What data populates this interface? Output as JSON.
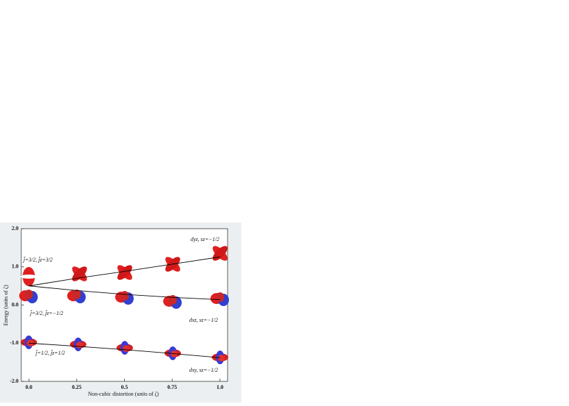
{
  "chart_data": {
    "type": "line",
    "xlabel": "Non-cubic distortion (units of ζ)",
    "ylabel": "Energy (units of ζ)",
    "x": [
      0,
      0.25,
      0.5,
      0.75,
      1
    ],
    "series": [
      {
        "name": "d_yz",
        "color": "#000000",
        "values": [
          0.5,
          0.7,
          0.88,
          1.07,
          1.26
        ]
      },
      {
        "name": "d_xz",
        "color": "#000000",
        "values": [
          0.5,
          0.38,
          0.28,
          0.2,
          0.14
        ]
      },
      {
        "name": "d_xy",
        "color": "#000000",
        "values": [
          -1.0,
          -1.08,
          -1.17,
          -1.27,
          -1.38
        ]
      }
    ],
    "annotations": [
      "j̃=3/2, j̃z=3/2",
      "j̃=3/2, j̃z=−1/2",
      "j̃=1/2, j̃z=1/2",
      "dyz, sz=−1/2",
      "dxz, sz=−1/2",
      "dxy, sz=−1/2"
    ],
    "xlim": [
      -0.04,
      1.04
    ],
    "ylim": [
      -2,
      2
    ],
    "xticks": [
      {
        "value": 0,
        "label": "0.0"
      },
      0.25,
      0.5,
      0.75,
      {
        "value": 1,
        "label": "1.0"
      }
    ],
    "yticks": [
      {
        "value": 2,
        "label": "2.0"
      },
      {
        "value": 1,
        "label": "1.0"
      },
      {
        "value": 0,
        "label": "0.0"
      },
      {
        "value": -1,
        "label": "-1.0"
      },
      {
        "value": -2,
        "label": "-2.0"
      }
    ]
  }
}
